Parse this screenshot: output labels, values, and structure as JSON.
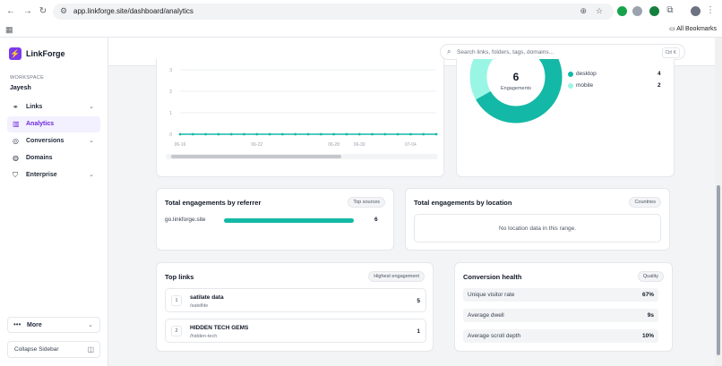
{
  "browser": {
    "url": "app.linkforge.site/dashboard/analytics",
    "bookmarks_label": "All Bookmarks"
  },
  "sidebar": {
    "logo": "LinkForge",
    "workspace_label": "WORKSPACE",
    "workspace_name": "Jayesh",
    "items": [
      {
        "label": "Links",
        "icon": "link-icon"
      },
      {
        "label": "Analytics",
        "icon": "bar-chart-icon"
      },
      {
        "label": "Conversions",
        "icon": "target-icon"
      },
      {
        "label": "Domains",
        "icon": "globe-icon"
      },
      {
        "label": "Enterprise",
        "icon": "shield-icon"
      }
    ],
    "more_label": "More",
    "collapse_label": "Collapse Sidebar"
  },
  "search": {
    "placeholder": "Search links, folders, tags, domains...",
    "shortcut": "Ctrl K"
  },
  "devices": {
    "center_value": "6",
    "center_label": "Engagements",
    "items": [
      {
        "label": "desktop",
        "value": "4",
        "color": "#14b8a6"
      },
      {
        "label": "mobile",
        "value": "2",
        "color": "#99f6e4"
      }
    ]
  },
  "chart_data": {
    "type": "line",
    "x": [
      "06-16",
      "06-17",
      "06-18",
      "06-19",
      "06-20",
      "06-21",
      "06-22",
      "06-23",
      "06-24",
      "06-25",
      "06-26",
      "06-27",
      "06-28",
      "06-29",
      "06-30",
      "07-01",
      "07-02",
      "07-03",
      "07-04",
      "07-05",
      "07-06"
    ],
    "x_tick_labels": [
      "06-16",
      "06-22",
      "06-28",
      "06-30",
      "07-04"
    ],
    "series": [
      {
        "values": [
          0,
          0,
          0,
          0,
          0,
          0,
          0,
          0,
          0,
          0,
          0,
          0,
          0,
          0,
          0,
          0,
          0,
          0,
          0,
          0,
          0
        ],
        "color": "#14b8a6"
      }
    ],
    "y_tick_labels": [
      "0",
      "1",
      "2",
      "3"
    ],
    "ylim": [
      0,
      3
    ],
    "grid": true
  },
  "referrer": {
    "title": "Total engagements by referrer",
    "pill": "Top sources",
    "rows": [
      {
        "label": "go.linkforge.site",
        "value": "6",
        "fraction": 1.0
      }
    ]
  },
  "location": {
    "title": "Total engagements by location",
    "pill": "Countries",
    "empty": "No location data in this range."
  },
  "top_links": {
    "title": "Top links",
    "pill": "Highest engagement",
    "items": [
      {
        "rank": "1",
        "title": "satilate data",
        "path": "/satellite",
        "value": "5"
      },
      {
        "rank": "2",
        "title": "HIDDEN TECH GEMS",
        "path": "/hidden-tech",
        "value": "1"
      }
    ]
  },
  "conversion_health": {
    "title": "Conversion health",
    "pill": "Quality",
    "rows": [
      {
        "label": "Unique visitor rate",
        "value": "67%"
      },
      {
        "label": "Average dwell",
        "value": "9s"
      },
      {
        "label": "Average scroll depth",
        "value": "10%"
      }
    ]
  }
}
